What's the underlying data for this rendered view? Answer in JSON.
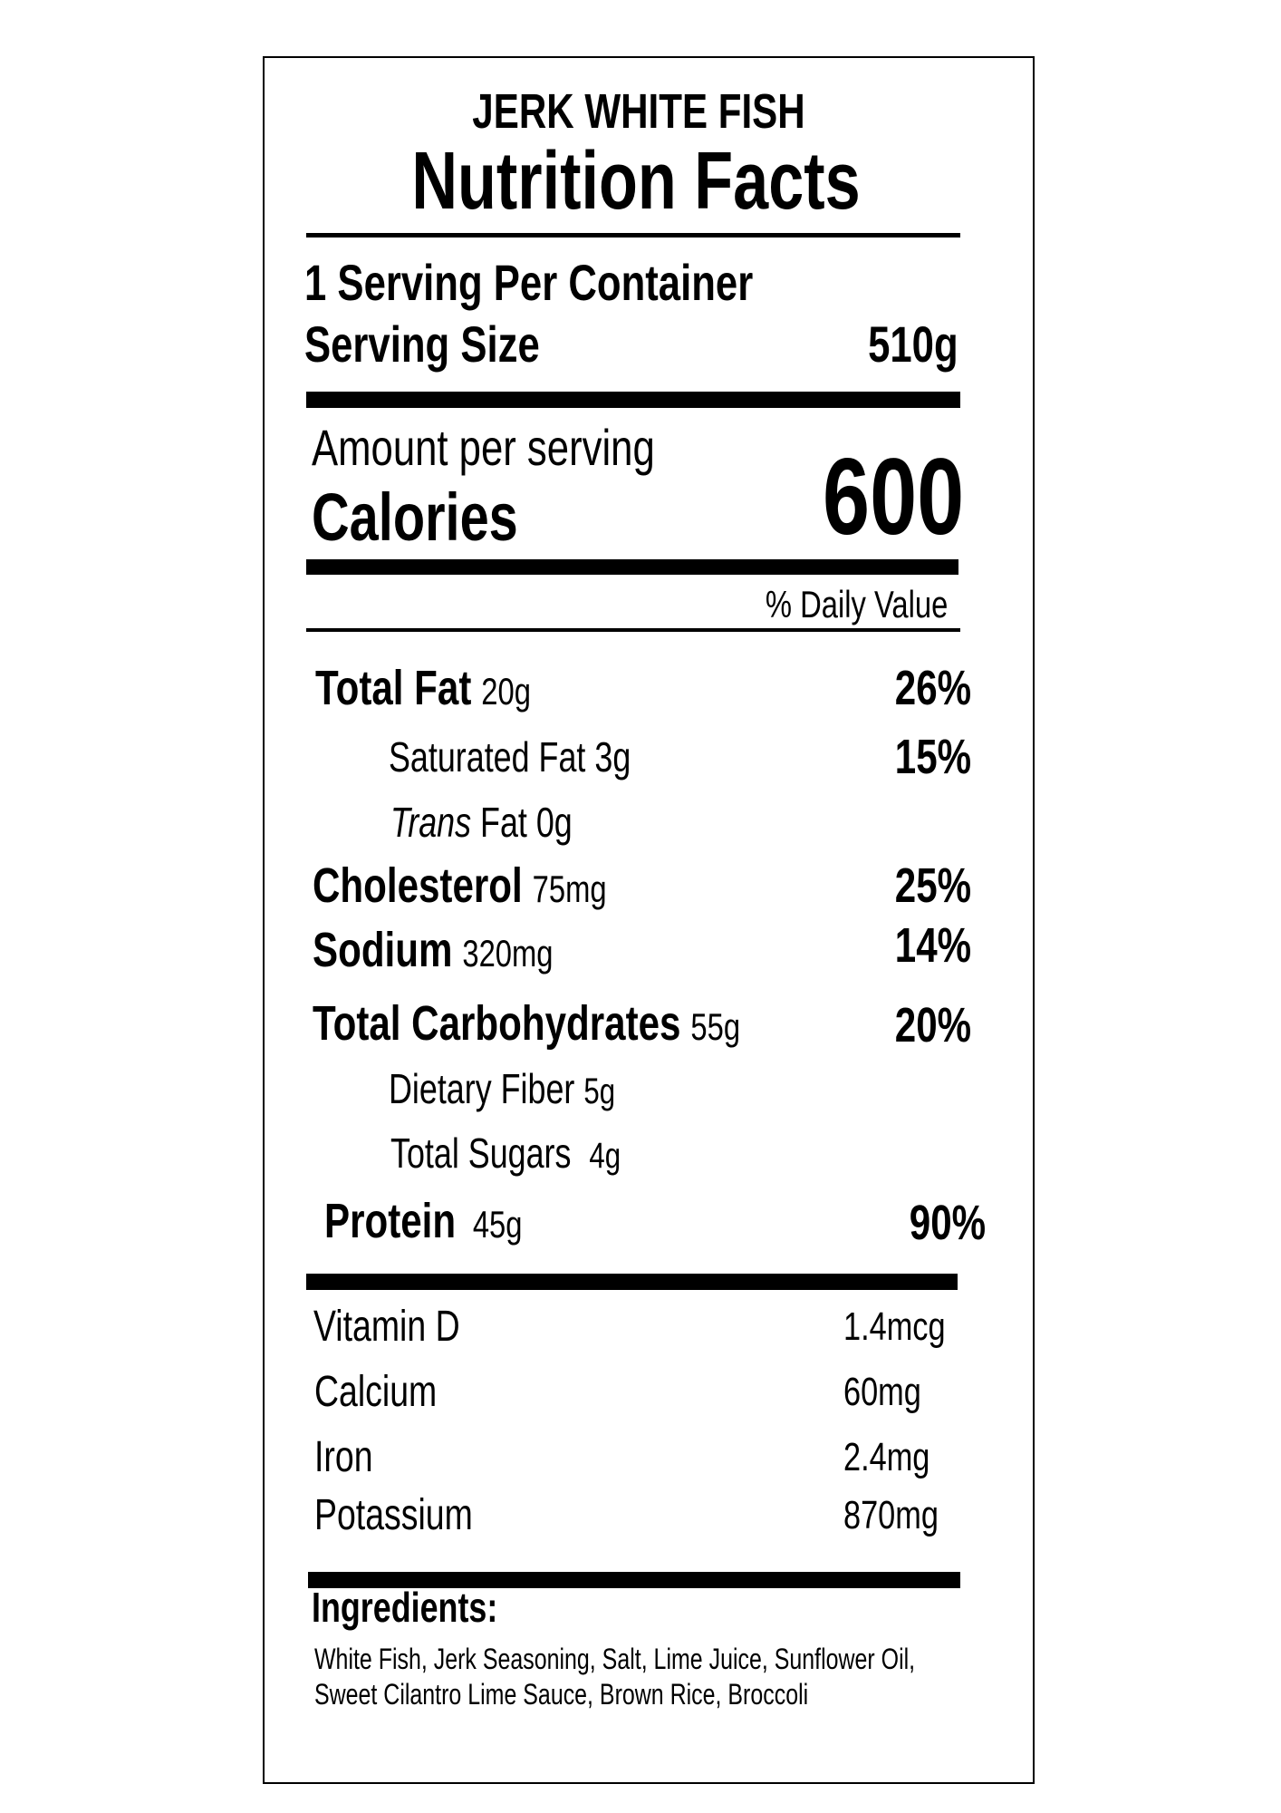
{
  "header": {
    "product": "JERK WHITE FISH",
    "title": "Nutrition Facts"
  },
  "serving": {
    "per_container": "1 Serving Per Container",
    "size_label": "Serving Size",
    "size_value": "510g"
  },
  "calories": {
    "amount_per_serving": "Amount per serving",
    "label": "Calories",
    "value": "600"
  },
  "daily_value_header": "% Daily Value",
  "nutrients": [
    {
      "name": "Total Fat",
      "amount": "20g",
      "dv": "26%"
    },
    {
      "name": "Saturated Fat",
      "amount": "3g",
      "dv": "15%"
    },
    {
      "name_italic": "Trans",
      "name": "Fat",
      "amount": "0g"
    },
    {
      "name": "Cholesterol",
      "amount": "75mg",
      "dv": "25%"
    },
    {
      "name": "Sodium",
      "amount": "320mg",
      "dv": "14%"
    },
    {
      "name": "Total Carbohydrates",
      "amount": "55g",
      "dv": "20%"
    },
    {
      "name": "Dietary Fiber",
      "amount": "5g"
    },
    {
      "name": "Total Sugars",
      "amount": "4g"
    },
    {
      "name": "Protein",
      "amount": "45g",
      "dv": "90%"
    }
  ],
  "vitamins": [
    {
      "name": "Vitamin D",
      "amount": "1.4mcg"
    },
    {
      "name": "Calcium",
      "amount": "60mg"
    },
    {
      "name": "Iron",
      "amount": "2.4mg"
    },
    {
      "name": "Potassium",
      "amount": "870mg"
    }
  ],
  "ingredients": {
    "label": "Ingredients:",
    "lines": [
      "White Fish, Jerk Seasoning, Salt, Lime Juice, Sunflower Oil,",
      "Sweet Cilantro Lime Sauce, Brown Rice, Broccoli"
    ]
  }
}
